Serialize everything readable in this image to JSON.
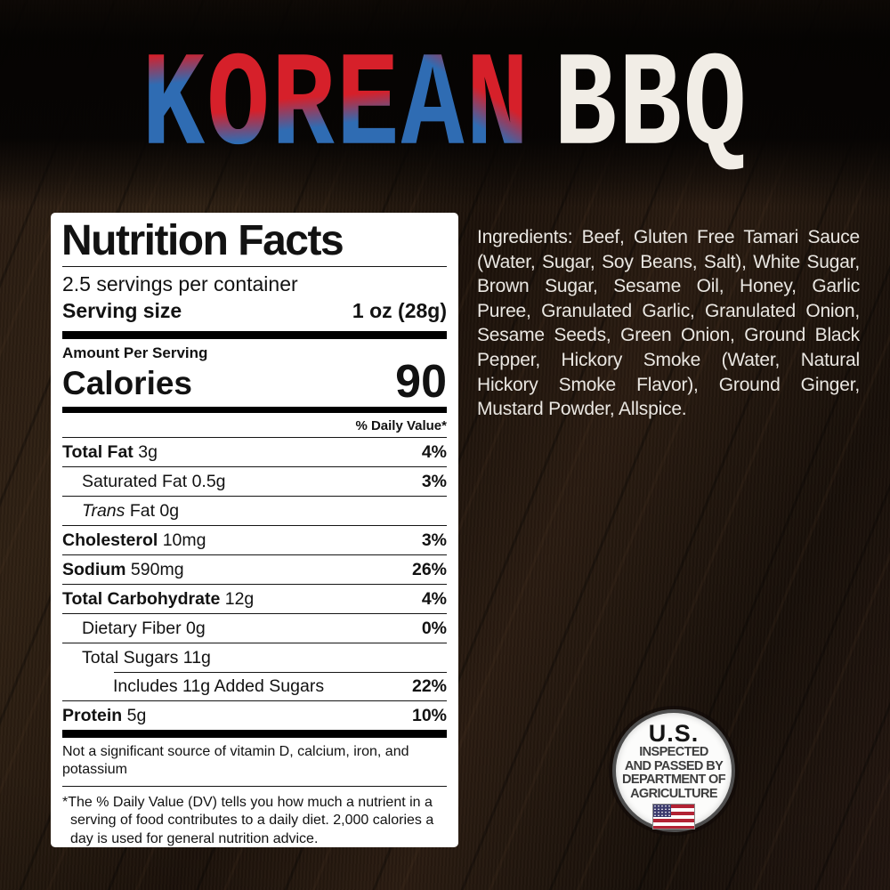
{
  "title": {
    "letters": [
      "K",
      "O",
      "R",
      "E",
      "A",
      "N"
    ],
    "word2": "BBQ",
    "red": "#d6202a",
    "blue": "#2f6cb3",
    "white": "#f1ede6"
  },
  "ingredients": {
    "text": "Ingredients: Beef, Gluten Free Tamari Sauce (Water, Sugar, Soy Beans, Salt), White Sugar, Brown Sugar, Sesame Oil, Honey, Garlic Puree, Granulated Garlic, Granulated Onion, Sesame Seeds, Green Onion, Ground Black Pepper, Hickory Smoke (Water, Natural Hickory Smoke Flavor), Ground Ginger, Mustard Powder, Allspice."
  },
  "nutrition": {
    "header": "Nutrition Facts",
    "servings_per_container": "2.5 servings per container",
    "serving_size_label": "Serving size",
    "serving_size_value": "1 oz (28g)",
    "amount_per_serving": "Amount Per Serving",
    "calories_label": "Calories",
    "calories_value": "90",
    "daily_value_header": "% Daily Value*",
    "rows": [
      {
        "b": "Total Fat",
        "i": "",
        "r": " 3g",
        "dv": "4%"
      },
      {
        "b": "",
        "i": "",
        "r": "Saturated Fat 0.5g",
        "dv": "3%"
      },
      {
        "b": "",
        "i": "Trans",
        "r": " Fat 0g",
        "dv": ""
      },
      {
        "b": "Cholesterol",
        "i": "",
        "r": " 10mg",
        "dv": "3%"
      },
      {
        "b": "Sodium",
        "i": "",
        "r": " 590mg",
        "dv": "26%"
      },
      {
        "b": "Total Carbohydrate",
        "i": "",
        "r": " 12g",
        "dv": "4%"
      },
      {
        "b": "",
        "i": "",
        "r": "Dietary Fiber 0g",
        "dv": "0%"
      },
      {
        "b": "",
        "i": "",
        "r": "Total Sugars 11g",
        "dv": ""
      },
      {
        "b": "",
        "i": "",
        "r": "Includes 11g Added Sugars",
        "dv": "22%"
      },
      {
        "b": "Protein",
        "i": "",
        "r": " 5g",
        "dv": "10%"
      }
    ],
    "not_significant": "Not a significant source of vitamin D, calcium, iron, and potassium",
    "footnote_mark": "*",
    "footnote": "The % Daily Value (DV) tells you how much a nutrient in a serving of food contributes to a daily diet. 2,000 calories a day is used for general nutrition advice."
  },
  "seal": {
    "line1": "U.S.",
    "line2": "INSPECTED",
    "line3": "AND PASSED BY",
    "line4": "DEPARTMENT OF",
    "line5": "AGRICULTURE"
  }
}
